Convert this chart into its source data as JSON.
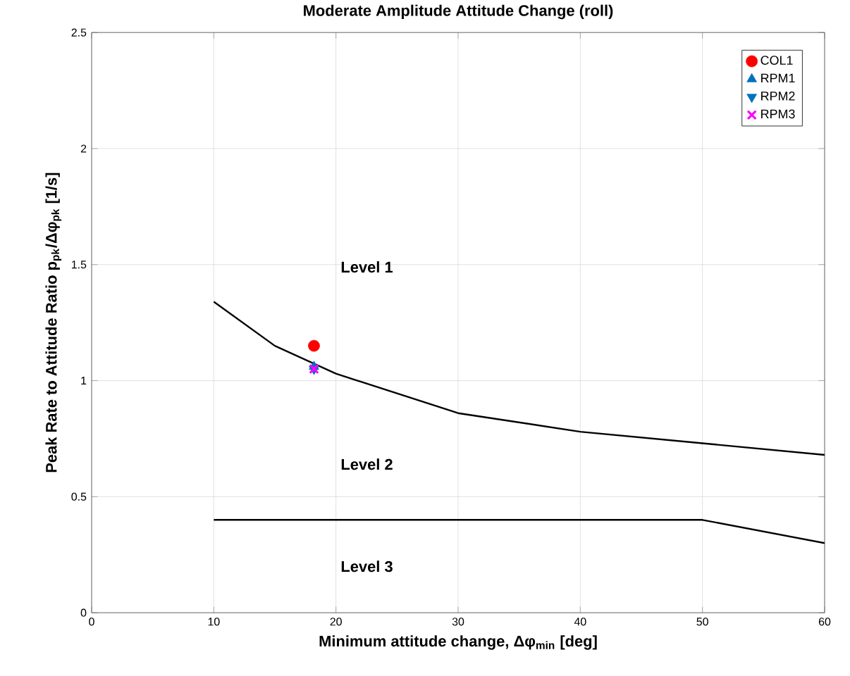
{
  "chart_data": {
    "type": "scatter",
    "title": "Moderate Amplitude Attitude Change (roll)",
    "xlabel": "Minimum attitude change, Δφ$_{min}$ [deg]",
    "ylabel": "Peak Rate to Attitude Ratio p$_{pk}$/Δφ$_{pk}$ [1/s]",
    "xlim": [
      0,
      60
    ],
    "ylim": [
      0,
      2.5
    ],
    "xticks": [
      0,
      10,
      20,
      30,
      40,
      50,
      60
    ],
    "yticks": [
      0,
      0.5,
      1,
      1.5,
      2,
      2.5
    ],
    "grid": true,
    "legend": "top right",
    "series": [
      {
        "name": "COL1",
        "color": "#ff0000",
        "marker": "circle",
        "x": [
          18.2
        ],
        "values": [
          1.15
        ]
      },
      {
        "name": "RPM1",
        "color": "#0072bd",
        "marker": "triangle",
        "x": [
          18.2
        ],
        "values": [
          1.06
        ]
      },
      {
        "name": "RPM2",
        "color": "#0072bd",
        "marker": "triangle down",
        "x": [
          18.2
        ],
        "values": [
          1.05
        ]
      },
      {
        "name": "RPM3",
        "color": "#ff00ff",
        "marker": "cross",
        "x": [
          18.2
        ],
        "values": [
          1.05
        ]
      },
      {
        "type": "line",
        "color": "#000000",
        "marker": "none",
        "x": [
          10,
          15,
          20,
          30,
          40,
          50,
          60
        ],
        "values": [
          1.34,
          1.15,
          1.03,
          0.86,
          0.78,
          0.73,
          0.68
        ]
      },
      {
        "type": "line",
        "color": "#000000",
        "marker": "none",
        "x": [
          10,
          50,
          60
        ],
        "values": [
          0.4,
          0.4,
          0.3
        ]
      }
    ],
    "annotations": [
      "Level 1",
      "Level 2",
      "Level 3"
    ]
  }
}
